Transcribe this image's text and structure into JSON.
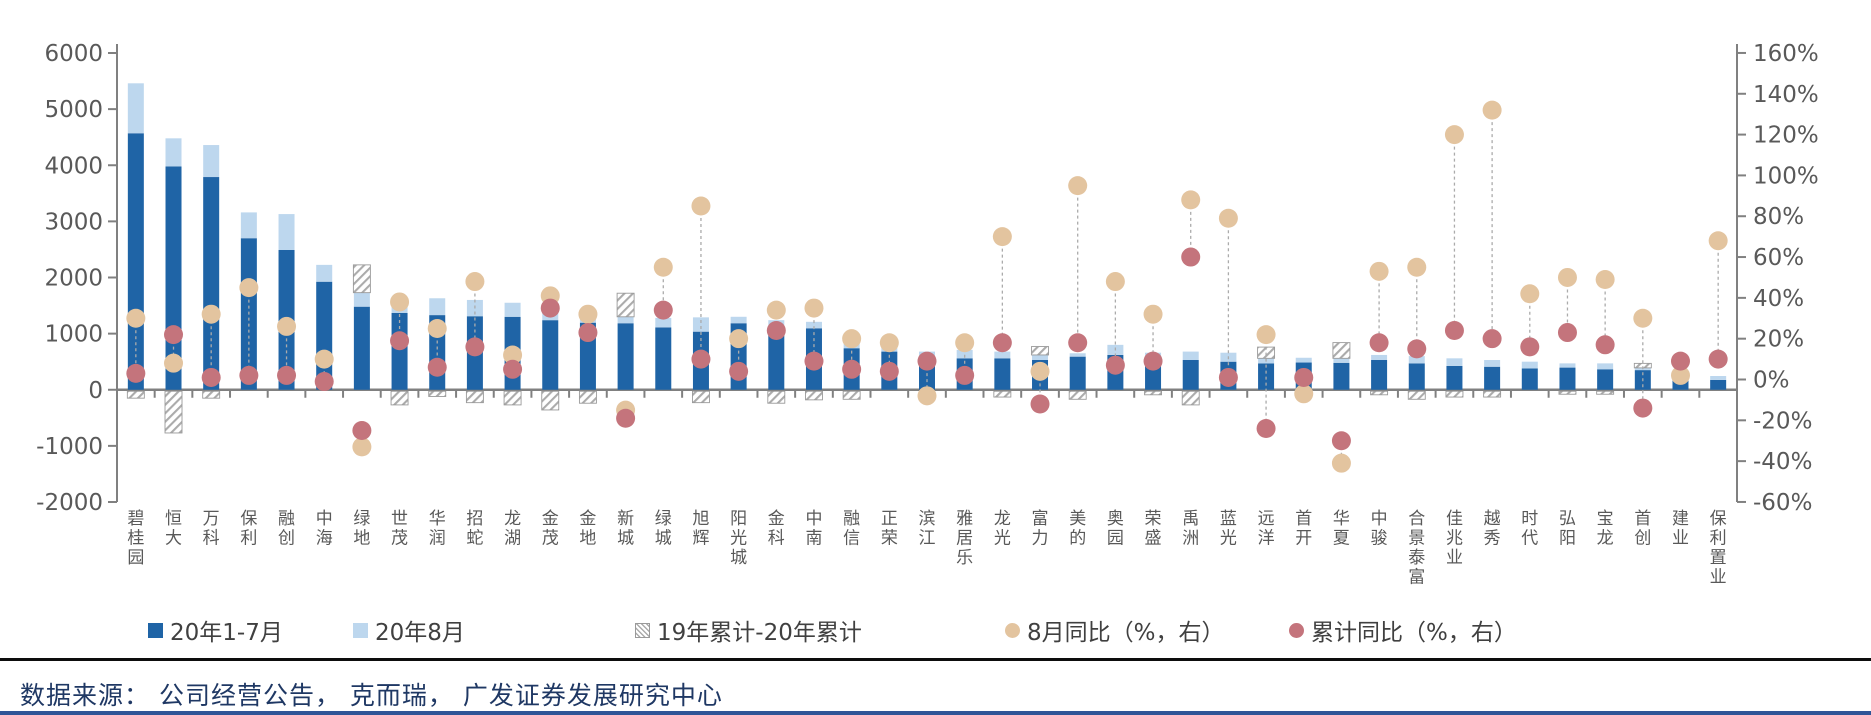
{
  "chart_data": {
    "type": "bar",
    "title": "",
    "categories": [
      "碧桂园",
      "恒大",
      "万科",
      "保利",
      "融创",
      "中海",
      "绿地",
      "世茂",
      "华润",
      "招蛇",
      "龙湖",
      "金茂",
      "金地",
      "新城",
      "绿城",
      "旭辉",
      "阳光城",
      "金科",
      "中南",
      "融信",
      "正荣",
      "滨江",
      "雅居乐",
      "龙光",
      "富力",
      "美的",
      "奥园",
      "荣盛",
      "禹洲",
      "蓝光",
      "远洋",
      "首开",
      "华夏",
      "中骏",
      "合景泰富",
      "佳兆业",
      "越秀",
      "时代",
      "弘阳",
      "宝龙",
      "首创",
      "建业",
      "保利置业"
    ],
    "series": [
      {
        "name": "20年1-7月",
        "type": "bar",
        "axis": "left",
        "color": "#1F64A6",
        "values": [
          4570,
          3980,
          3790,
          2700,
          2490,
          1925,
          1480,
          1370,
          1330,
          1310,
          1300,
          1240,
          1195,
          1185,
          1110,
          1035,
          1185,
          1125,
          1095,
          740,
          680,
          590,
          560,
          560,
          530,
          590,
          620,
          545,
          530,
          500,
          470,
          485,
          480,
          530,
          470,
          425,
          410,
          380,
          395,
          365,
          350,
          235,
          175
        ]
      },
      {
        "name": "20年8月",
        "type": "bar",
        "axis": "left",
        "color": "#BDD7EE",
        "values": [
          890,
          500,
          570,
          460,
          640,
          300,
          250,
          285,
          300,
          290,
          250,
          190,
          195,
          115,
          170,
          255,
          115,
          115,
          115,
          115,
          85,
          90,
          150,
          120,
          90,
          60,
          180,
          115,
          150,
          160,
          90,
          85,
          80,
          90,
          130,
          135,
          120,
          120,
          75,
          105,
          40,
          60,
          70
        ]
      },
      {
        "name": "19年累计-20年累计",
        "type": "bar-hatch",
        "axis": "left",
        "color": "hatch",
        "values": [
          -150,
          -770,
          -150,
          0,
          0,
          0,
          495,
          -270,
          -120,
          -230,
          -270,
          -360,
          -240,
          420,
          0,
          -230,
          0,
          -240,
          -180,
          -170,
          0,
          0,
          0,
          -130,
          150,
          -170,
          0,
          -90,
          -270,
          0,
          200,
          0,
          280,
          -90,
          -170,
          -130,
          -130,
          0,
          -80,
          -80,
          80,
          0,
          0
        ]
      },
      {
        "name": "8月同比（%，右）",
        "type": "dot",
        "axis": "right",
        "color": "#E3C49F",
        "values": [
          30,
          8,
          32,
          45,
          26,
          10,
          -33,
          38,
          25,
          48,
          12,
          41,
          32,
          -15,
          55,
          85,
          20,
          34,
          35,
          20,
          18,
          -8,
          18,
          70,
          4,
          95,
          48,
          32,
          88,
          79,
          22,
          -7,
          -41,
          53,
          55,
          120,
          132,
          42,
          50,
          49,
          30,
          2,
          68
        ]
      },
      {
        "name": "累计同比（%，右）",
        "type": "dot",
        "axis": "right",
        "color": "#C4747C",
        "values": [
          3,
          22,
          1,
          2,
          2,
          -1,
          -25,
          19,
          6,
          16,
          5,
          35,
          23,
          -19,
          34,
          10,
          4,
          24,
          9,
          5,
          4,
          9,
          2,
          18,
          -12,
          18,
          7,
          9,
          60,
          1,
          -24,
          1,
          -30,
          18,
          15,
          24,
          20,
          16,
          23,
          17,
          -14,
          9,
          10
        ]
      }
    ],
    "left_axis": {
      "min": -2000,
      "max": 6000,
      "step": 1000,
      "tick_values": [
        6000,
        5000,
        4000,
        3000,
        2000,
        1000,
        0,
        -1000,
        -2000
      ],
      "tick_labels": [
        "6000",
        "5000",
        "4000",
        "3000",
        "2000",
        "1000",
        "0",
        "-1000",
        "-2000"
      ]
    },
    "right_axis": {
      "min": -60,
      "max": 160,
      "step": 20,
      "tick_values": [
        160,
        140,
        120,
        100,
        80,
        60,
        40,
        20,
        0,
        -20,
        -40,
        -60
      ],
      "tick_labels": [
        "160%",
        "140%",
        "120%",
        "100%",
        "80%",
        "60%",
        "40%",
        "20%",
        "0%",
        "-20%",
        "-40%",
        "-60%"
      ]
    },
    "grid": "off",
    "legend_position": "bottom",
    "colors": {
      "bar_jul": "#1F64A6",
      "bar_aug": "#BDD7EE",
      "dot_aug_yoy": "#E3C49F",
      "dot_cum_yoy": "#C4747C",
      "axis_line": "#808080",
      "tick_text": "#595959",
      "dashed_connector": "#ABABAB",
      "hatch_stroke": "#ABABAB"
    }
  },
  "legend": {
    "items": [
      {
        "label": "20年1-7月",
        "marker": "square-dark-blue"
      },
      {
        "label": "20年8月",
        "marker": "square-light-blue"
      },
      {
        "label": "19年累计-20年累计",
        "marker": "square-hatched"
      },
      {
        "label": "8月同比（%，右）",
        "marker": "circle-tan"
      },
      {
        "label": "累计同比（%，右）",
        "marker": "circle-red"
      }
    ]
  },
  "source": {
    "text": "数据来源： 公司经营公告， 克而瑞， 广发证券发展研究中心"
  }
}
